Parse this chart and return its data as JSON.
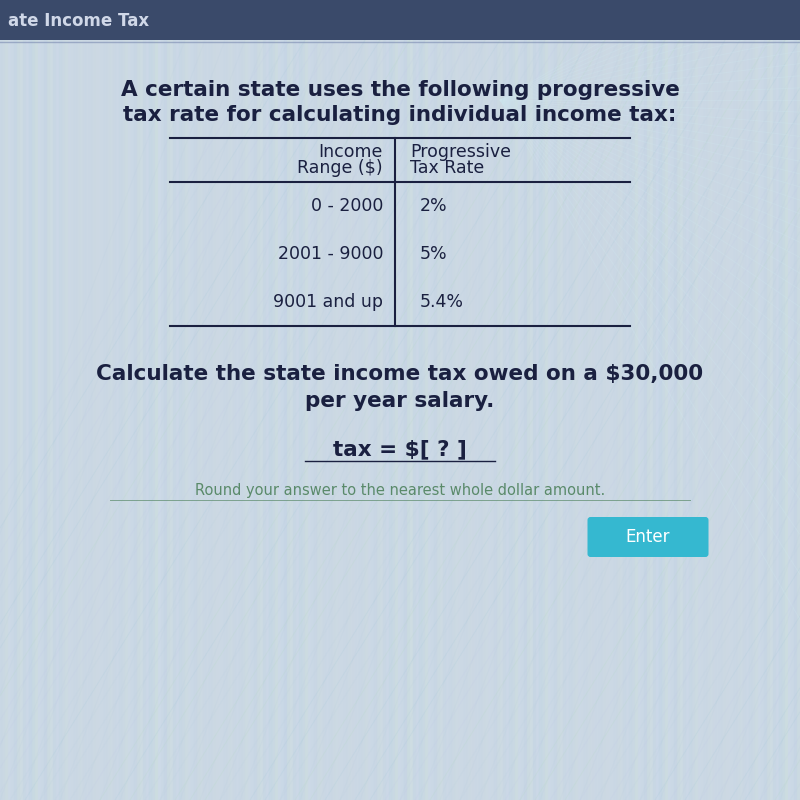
{
  "title_bar_text": "ate Income Tax",
  "title_bar_bg": "#3a4a6a",
  "main_text_line1": "A certain state uses the following progressive",
  "main_text_line2": "tax rate for calculating individual income tax:",
  "col1_header_line1": "Income",
  "col1_header_line2": "Range ($)",
  "col2_header_line1": "Progressive",
  "col2_header_line2": "Tax Rate",
  "rows": [
    [
      "0 - 2000",
      "2%"
    ],
    [
      "2001 - 9000",
      "5%"
    ],
    [
      "9001 and up",
      "5.4%"
    ]
  ],
  "question_line1": "Calculate the state income tax owed on a $30,000",
  "question_line2": "per year salary.",
  "tax_line": "tax = $[ ? ]",
  "hint_text": "Round your answer to the nearest whole dollar amount.",
  "hint_color": "#5a8a6a",
  "enter_btn_bg": "#35b8d0",
  "enter_btn_text": "Enter",
  "enter_btn_text_color": "#ffffff",
  "text_color": "#1a2040"
}
